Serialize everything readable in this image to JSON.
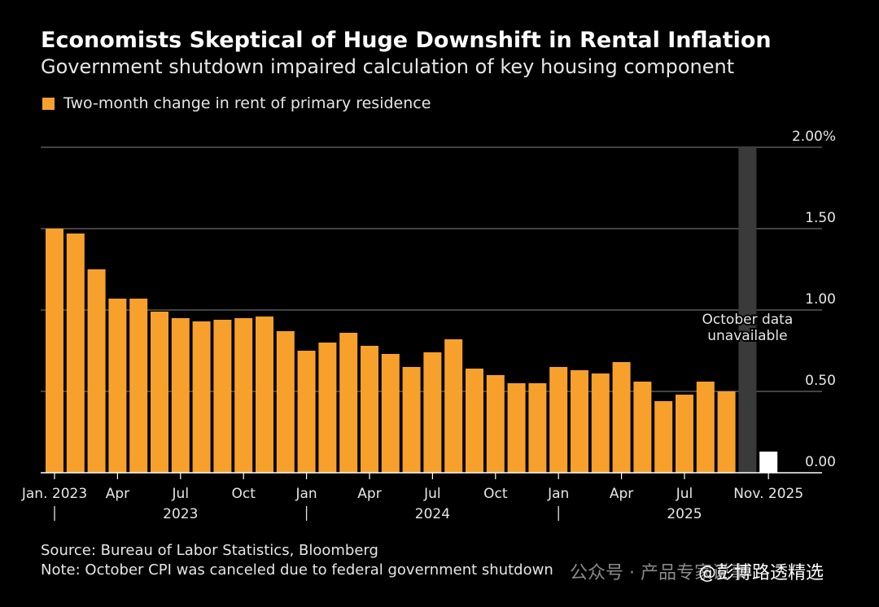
{
  "header": {
    "title": "Economists Skeptical of Huge Downshift in Rental Inflation",
    "subtitle": "Government shutdown impaired calculation of key housing component"
  },
  "legend": {
    "label": "Two-month change in rent of primary residence"
  },
  "colors": {
    "bar": "#f7a12c",
    "background": "#000000",
    "gridline": "#6b6b6b",
    "shutdown_band": "#3a3a3a",
    "last_bar": "#ffffff",
    "text": "#e6e6e6"
  },
  "chart_data": {
    "type": "bar",
    "title": "Economists Skeptical of Huge Downshift in Rental Inflation",
    "ylim": [
      0,
      2.0
    ],
    "yticks": [
      {
        "value": 2.0,
        "label": "2.00%"
      },
      {
        "value": 1.5,
        "label": "1.50"
      },
      {
        "value": 1.0,
        "label": "1.00"
      },
      {
        "value": 0.5,
        "label": "0.50"
      },
      {
        "value": 0.0,
        "label": "0.00"
      }
    ],
    "grid": true,
    "categories": [
      "Jan 2023",
      "Feb 2023",
      "Mar 2023",
      "Apr 2023",
      "May 2023",
      "Jun 2023",
      "Jul 2023",
      "Aug 2023",
      "Sep 2023",
      "Oct 2023",
      "Nov 2023",
      "Dec 2023",
      "Jan 2024",
      "Feb 2024",
      "Mar 2024",
      "Apr 2024",
      "May 2024",
      "Jun 2024",
      "Jul 2024",
      "Aug 2024",
      "Sep 2024",
      "Oct 2024",
      "Nov 2024",
      "Dec 2024",
      "Jan 2025",
      "Feb 2025",
      "Mar 2025",
      "Apr 2025",
      "May 2025",
      "Jun 2025",
      "Jul 2025",
      "Aug 2025",
      "Sep 2025",
      "Oct 2025",
      "Nov 2025"
    ],
    "values": [
      1.5,
      1.47,
      1.25,
      1.07,
      1.07,
      0.99,
      0.95,
      0.93,
      0.94,
      0.95,
      0.96,
      0.87,
      0.75,
      0.8,
      0.86,
      0.78,
      0.73,
      0.65,
      0.74,
      0.82,
      0.64,
      0.6,
      0.55,
      0.55,
      0.65,
      0.63,
      0.61,
      0.68,
      0.56,
      0.44,
      0.48,
      0.56,
      0.5,
      null,
      0.13
    ],
    "x_month_labels": [
      {
        "index": 0,
        "text": "Jan. 2023"
      },
      {
        "index": 3,
        "text": "Apr"
      },
      {
        "index": 6,
        "text": "Jul"
      },
      {
        "index": 9,
        "text": "Oct"
      },
      {
        "index": 12,
        "text": "Jan"
      },
      {
        "index": 15,
        "text": "Apr"
      },
      {
        "index": 18,
        "text": "Jul"
      },
      {
        "index": 21,
        "text": "Oct"
      },
      {
        "index": 24,
        "text": "Jan"
      },
      {
        "index": 27,
        "text": "Apr"
      },
      {
        "index": 30,
        "text": "Jul"
      },
      {
        "index": 34,
        "text": "Nov. 2025"
      }
    ],
    "year_labels": [
      {
        "start": 0,
        "text": "2023"
      },
      {
        "start": 12,
        "text": "2024"
      },
      {
        "start": 24,
        "text": "2025"
      }
    ],
    "highlight": {
      "index": 33,
      "label_line1": "October data",
      "label_line2": "unavailable"
    }
  },
  "footer": {
    "source": "Source: Bureau of Labor Statistics, Bloomberg",
    "note": "Note: October CPI was canceled due to federal government shutdown"
  },
  "watermark": {
    "channel": "公众号 · 产品专家说事",
    "account": "@彭博路透精选"
  }
}
